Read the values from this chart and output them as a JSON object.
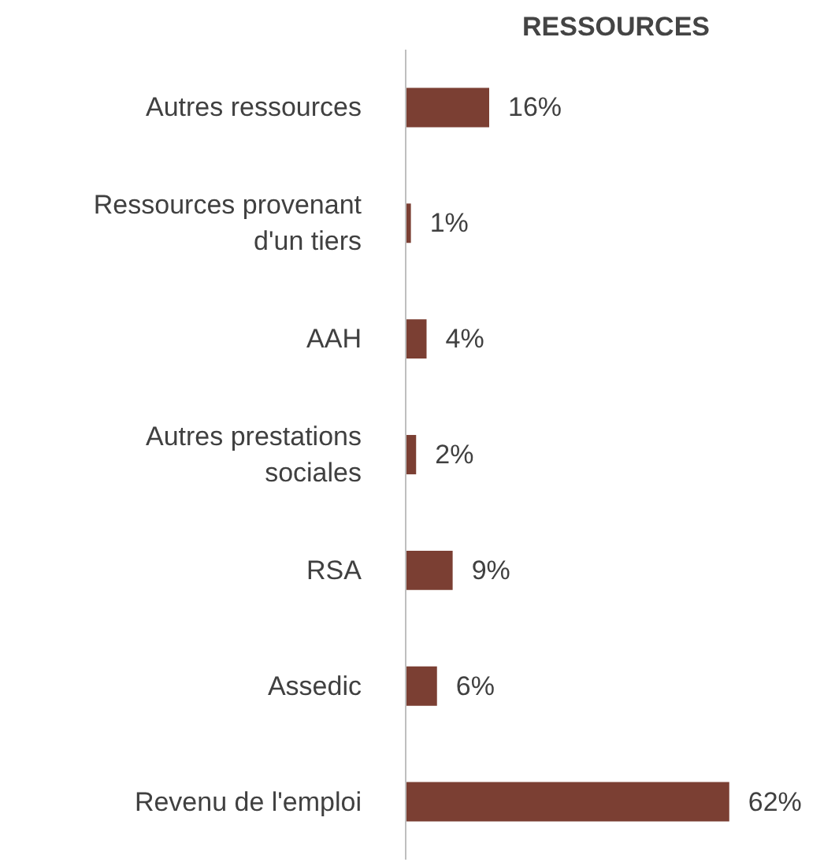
{
  "chart_data": {
    "type": "bar",
    "orientation": "horizontal",
    "title": "RESSOURCES",
    "categories": [
      "Autres ressources",
      "Ressources provenant d'un tiers",
      "AAH",
      "Autres prestations sociales",
      "RSA",
      "Assedic",
      "Revenu de l'emploi"
    ],
    "values": [
      16,
      1,
      4,
      2,
      9,
      6,
      62
    ],
    "value_labels": [
      "16%",
      "1%",
      "4%",
      "2%",
      "9%",
      "6%",
      "62%"
    ],
    "color": "#7b3f33"
  }
}
